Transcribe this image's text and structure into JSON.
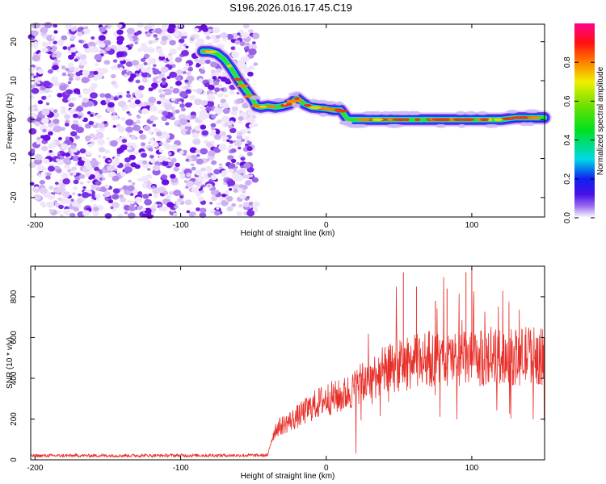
{
  "title": "S196.2026.016.17.45.C19",
  "chart_data": [
    {
      "type": "heatmap",
      "name": "spectrogram",
      "xlabel": "Height of straight line (km)",
      "ylabel": "Frequency (Hz)",
      "xlim": [
        -203,
        150
      ],
      "ylim": [
        -25,
        24.5
      ],
      "xticks": [
        -200,
        -100,
        0,
        100
      ],
      "yticks": [
        -20,
        -10,
        0,
        10,
        20
      ],
      "noise_region_x": [
        -203,
        -48
      ],
      "signal_trace": {
        "x": [
          -85,
          -80,
          -75,
          -70,
          -65,
          -60,
          -55,
          -50,
          -48,
          -45,
          -40,
          -35,
          -30,
          -25,
          -20,
          -15,
          -10,
          -5,
          0,
          5,
          10,
          15,
          20,
          30,
          40,
          50,
          60,
          70,
          80,
          90,
          100,
          110,
          120,
          130,
          140,
          150
        ],
        "y": [
          17.5,
          17.5,
          17,
          15.5,
          13,
          10,
          7.5,
          5,
          3.5,
          3.2,
          3.5,
          3.2,
          3.5,
          4,
          5.5,
          4,
          3.2,
          3,
          2.8,
          2.5,
          2.5,
          0,
          0,
          0,
          0,
          0,
          0,
          0,
          0,
          0,
          0,
          0,
          0,
          0.5,
          0.5,
          0.5
        ]
      },
      "colorbar": {
        "label": "Normalized spectral amplitude",
        "range": [
          0.0,
          1.0
        ],
        "ticks": [
          "0.0",
          "0.2",
          "0.4",
          "0.6",
          "0.8"
        ]
      }
    },
    {
      "type": "line",
      "name": "snr",
      "xlabel": "Height of straight line (km)",
      "ylabel": "SNR (10 * v/v)",
      "xlim": [
        -203,
        150
      ],
      "ylim": [
        0,
        950
      ],
      "xticks": [
        -200,
        -100,
        0,
        100
      ],
      "yticks": [
        0,
        200,
        400,
        600,
        800
      ],
      "color": "#e8302a",
      "envelope": {
        "x": [
          -203,
          -40,
          -38,
          -35,
          -30,
          -20,
          -10,
          0,
          10,
          20,
          30,
          40,
          50,
          60,
          70,
          80,
          90,
          100,
          110,
          120,
          130,
          140,
          150
        ],
        "mean": [
          20,
          22,
          90,
          150,
          170,
          210,
          260,
          300,
          310,
          350,
          400,
          440,
          460,
          480,
          500,
          480,
          500,
          490,
          500,
          510,
          500,
          520,
          500
        ]
      },
      "spikes": [
        {
          "x": 53,
          "y": 920
        },
        {
          "x": 96,
          "y": 920
        },
        {
          "x": 100,
          "y": 940
        },
        {
          "x": 62,
          "y": 850
        },
        {
          "x": 83,
          "y": 840
        },
        {
          "x": 75,
          "y": 780
        }
      ]
    }
  ]
}
